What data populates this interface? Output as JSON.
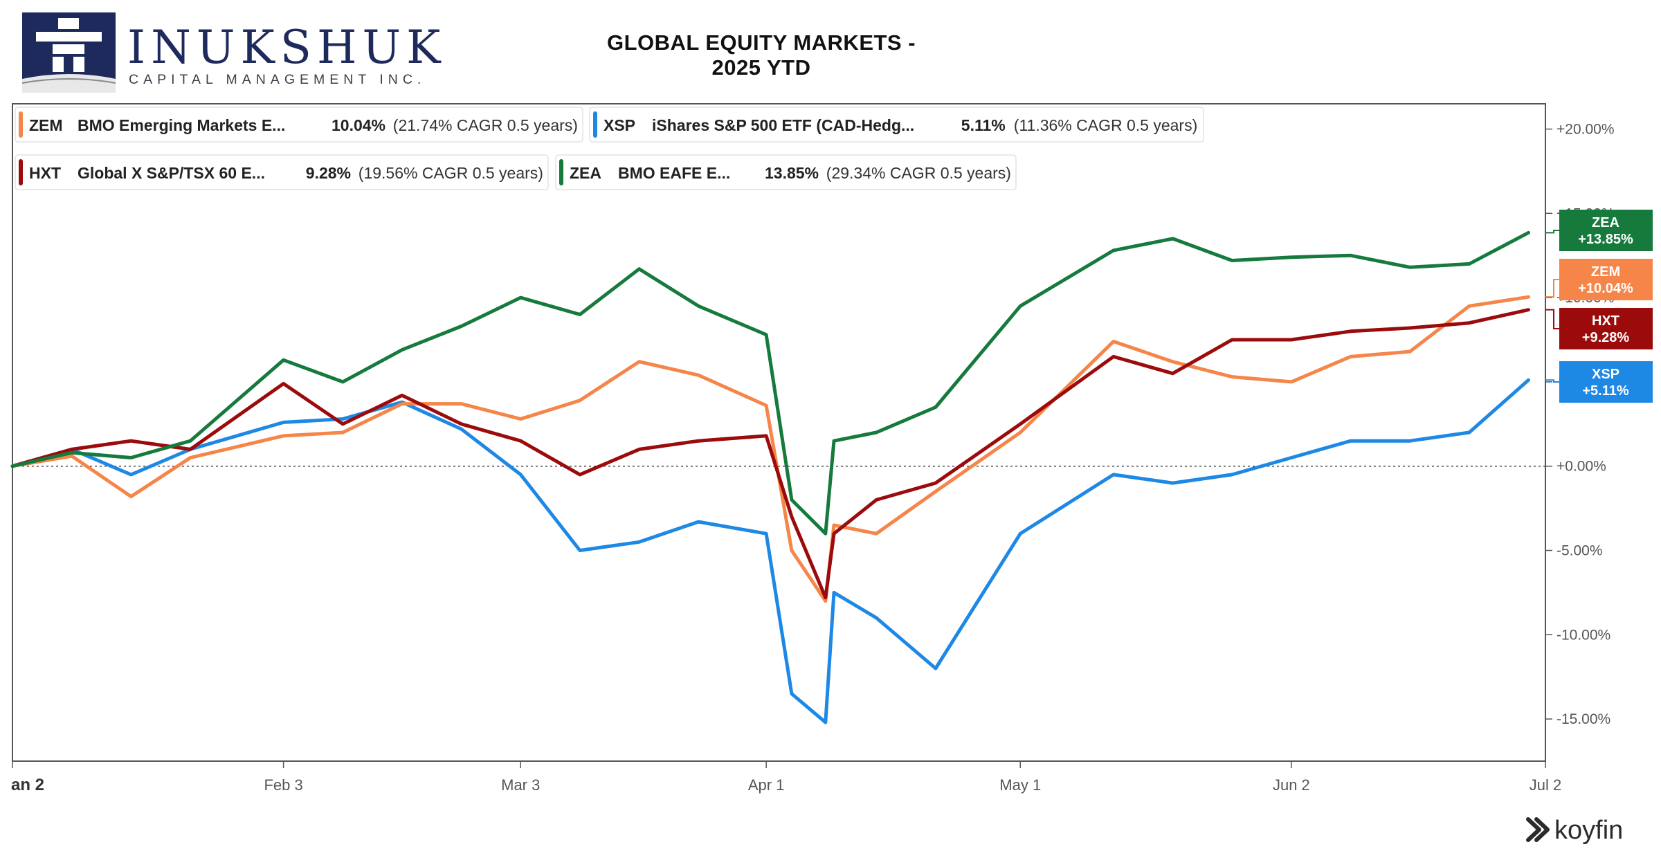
{
  "brand": {
    "name": "INUKSHUK",
    "subtitle": "CAPITAL MANAGEMENT INC."
  },
  "chart_title": "GLOBAL EQUITY MARKETS - 2025 YTD",
  "watermark": "koyfin",
  "colors": {
    "ZEM": "#f58549",
    "XSP": "#1e88e5",
    "HXT": "#9b0b0b",
    "ZEA": "#167a3d",
    "axis": "#333333",
    "zero_line": "#444444"
  },
  "chart_data": {
    "type": "line",
    "title": "GLOBAL EQUITY MARKETS - 2025 YTD",
    "xlabel": "",
    "ylabel": "",
    "x_ticks": [
      "an 2",
      "Feb 3",
      "Mar 3",
      "Apr 1",
      "May 1",
      "Jun 2",
      "Jul 2"
    ],
    "y_ticks": [
      "+20.00%",
      "+15.00%",
      "+10.00%",
      "+5.00%",
      "+0.00%",
      "-5.00%",
      "-10.00%",
      "-15.00%"
    ],
    "ylim": [
      -17.5,
      21.5
    ],
    "y_axis_side": "right",
    "grid": false,
    "zero_line": true,
    "legend_position": "top-left",
    "legend": [
      {
        "ticker": "ZEM",
        "name": "BMO Emerging Markets E...",
        "ret": "10.04%",
        "cagr": "(21.74% CAGR 0.5 years)"
      },
      {
        "ticker": "XSP",
        "name": "iShares S&P 500 ETF (CAD-Hedg...",
        "ret": "5.11%",
        "cagr": "(11.36% CAGR 0.5 years)"
      },
      {
        "ticker": "HXT",
        "name": "Global X S&P/TSX 60 E...",
        "ret": "9.28%",
        "cagr": "(19.56% CAGR 0.5 years)"
      },
      {
        "ticker": "ZEA",
        "name": "BMO EAFE E...",
        "ret": "13.85%",
        "cagr": "(29.34% CAGR 0.5 years)"
      }
    ],
    "end_labels": [
      {
        "ticker": "ZEA",
        "value": "+13.85%"
      },
      {
        "ticker": "ZEM",
        "value": "+10.04%"
      },
      {
        "ticker": "HXT",
        "value": "+9.28%"
      },
      {
        "ticker": "XSP",
        "value": "+5.11%"
      }
    ],
    "x": [
      "2025-01-02",
      "2025-01-09",
      "2025-01-16",
      "2025-01-23",
      "2025-02-03",
      "2025-02-10",
      "2025-02-17",
      "2025-02-24",
      "2025-03-03",
      "2025-03-10",
      "2025-03-17",
      "2025-03-24",
      "2025-04-01",
      "2025-04-04",
      "2025-04-08",
      "2025-04-09",
      "2025-04-14",
      "2025-04-21",
      "2025-05-01",
      "2025-05-12",
      "2025-05-19",
      "2025-05-26",
      "2025-06-02",
      "2025-06-09",
      "2025-06-16",
      "2025-06-23",
      "2025-06-30"
    ],
    "series": [
      {
        "name": "XSP",
        "values": [
          0.0,
          1.0,
          -0.5,
          1.0,
          2.6,
          2.8,
          3.8,
          2.2,
          -0.5,
          -5.0,
          -4.5,
          -3.3,
          -4.0,
          -13.5,
          -15.2,
          -7.5,
          -9.0,
          -12.0,
          -4.0,
          -0.5,
          -1.0,
          -0.5,
          0.5,
          1.5,
          1.5,
          2.0,
          5.11
        ]
      },
      {
        "name": "ZEM",
        "values": [
          0.0,
          0.6,
          -1.8,
          0.5,
          1.8,
          2.0,
          3.7,
          3.7,
          2.8,
          3.9,
          6.2,
          5.4,
          3.6,
          -5.0,
          -8.0,
          -3.5,
          -4.0,
          -1.5,
          2.0,
          7.4,
          6.2,
          5.3,
          5.0,
          6.5,
          6.8,
          9.5,
          10.04
        ]
      },
      {
        "name": "HXT",
        "values": [
          0.0,
          1.0,
          1.5,
          1.0,
          4.9,
          2.5,
          4.2,
          2.5,
          1.5,
          -0.5,
          1.0,
          1.5,
          1.8,
          -3.0,
          -7.8,
          -4.0,
          -2.0,
          -1.0,
          2.5,
          6.5,
          5.5,
          7.5,
          7.5,
          8.0,
          8.2,
          8.5,
          9.28
        ]
      },
      {
        "name": "ZEA",
        "values": [
          0.0,
          0.8,
          0.5,
          1.5,
          6.3,
          5.0,
          6.9,
          8.3,
          10.0,
          9.0,
          11.7,
          9.5,
          7.8,
          -2.0,
          -4.0,
          1.5,
          2.0,
          3.5,
          9.5,
          12.8,
          13.5,
          12.2,
          12.4,
          12.5,
          11.8,
          12.0,
          13.85
        ]
      }
    ]
  }
}
